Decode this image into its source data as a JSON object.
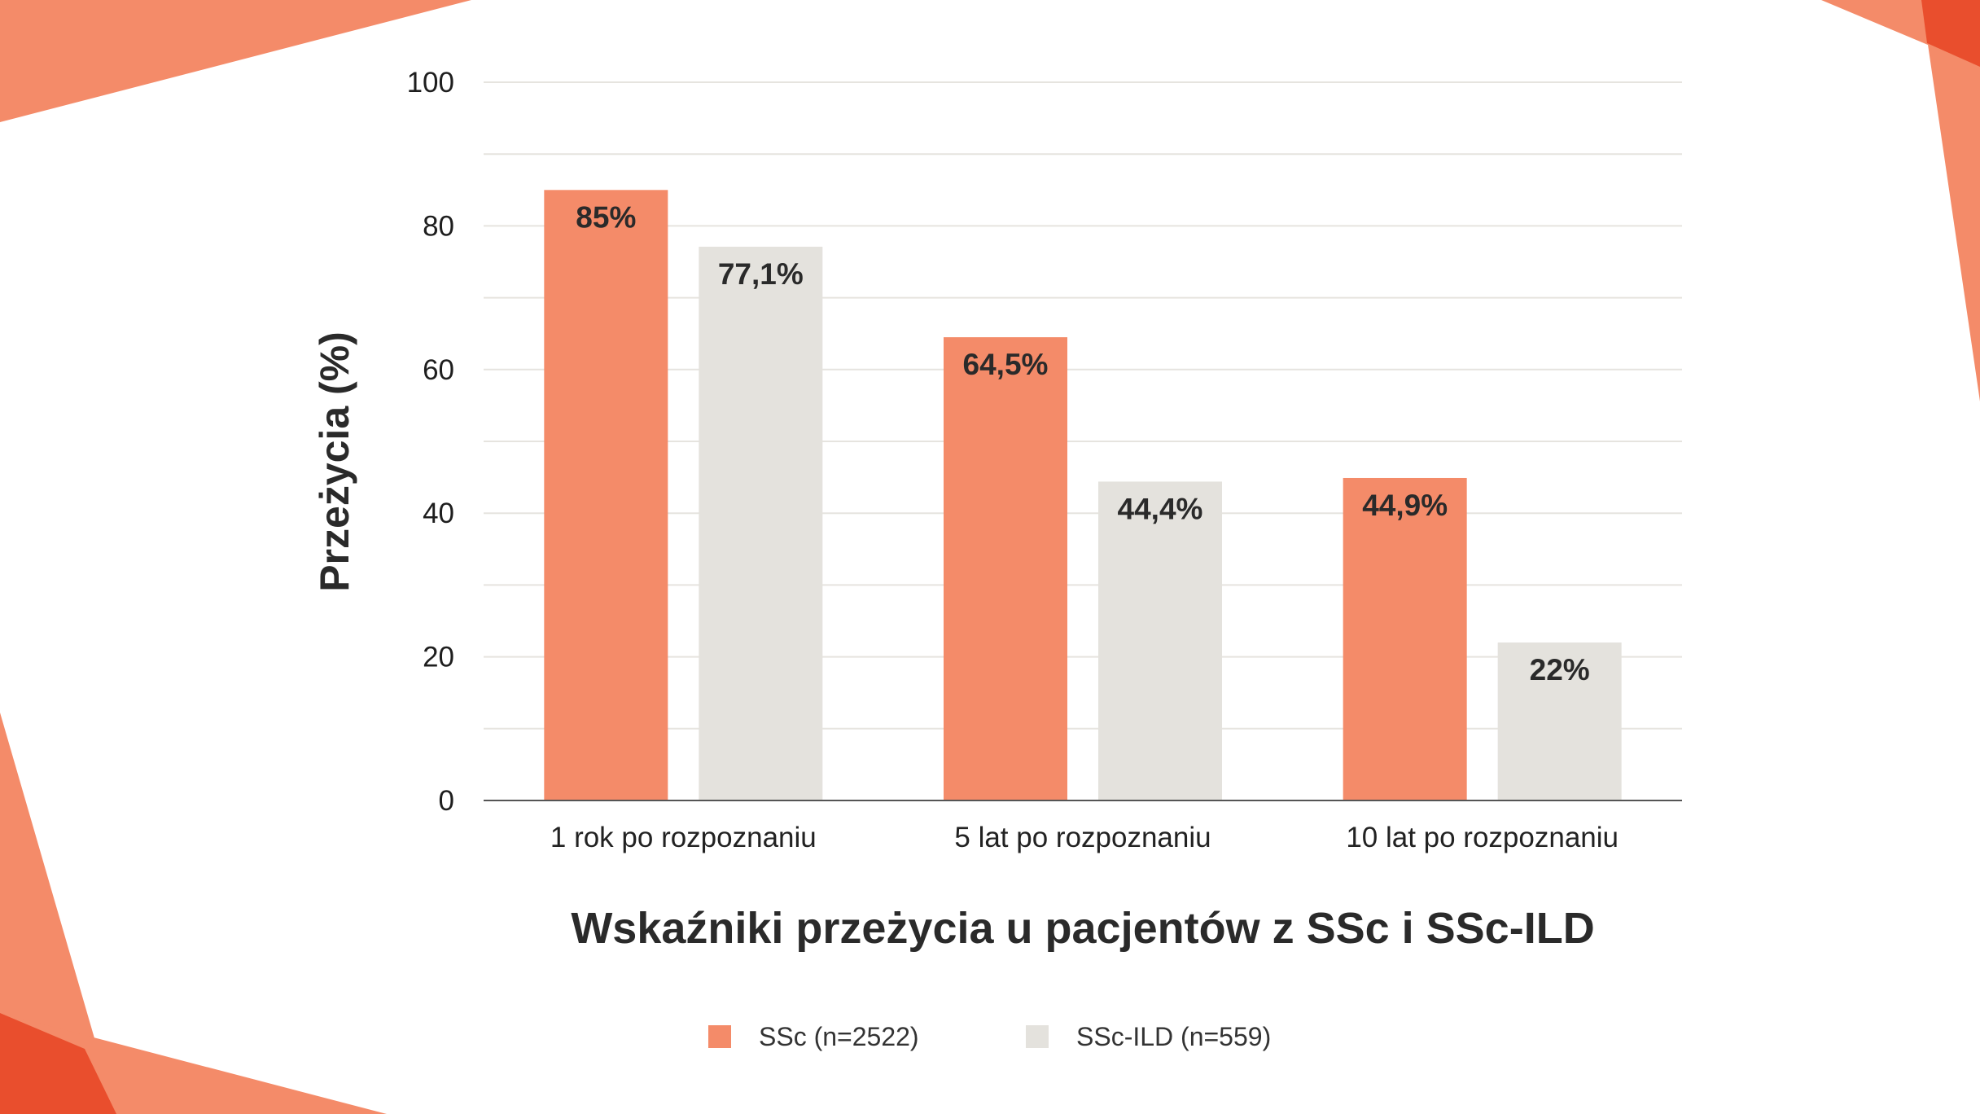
{
  "colors": {
    "accent_light": "#F48B69",
    "accent_dark": "#E94E2D",
    "ssc": "#F48B69",
    "ssc_ild": "#E4E2DD",
    "grid": "#E6E4DF",
    "axis": "#555555"
  },
  "chart_data": {
    "type": "bar",
    "title": "Wskaźniki przeżycia u pacjentów z SSc i SSc-ILD",
    "xlabel": "",
    "ylabel": "Przeżycia (%)",
    "ylim": [
      0,
      100
    ],
    "yticks": [
      "0",
      "20",
      "40",
      "60",
      "80",
      "100"
    ],
    "grid": true,
    "legend_position": "bottom",
    "categories": [
      "1 rok po rozpoznaniu",
      "5 lat po rozpoznaniu",
      "10 lat po rozpoznaniu"
    ],
    "series": [
      {
        "name": "SSc (n=2522)",
        "values": [
          85,
          64.5,
          44.9
        ],
        "labels": [
          "85%",
          "64,5%",
          "44,9%"
        ]
      },
      {
        "name": "SSc-ILD (n=559)",
        "values": [
          77.1,
          44.4,
          22
        ],
        "labels": [
          "77,1%",
          "44,4%",
          "22%"
        ]
      }
    ]
  }
}
